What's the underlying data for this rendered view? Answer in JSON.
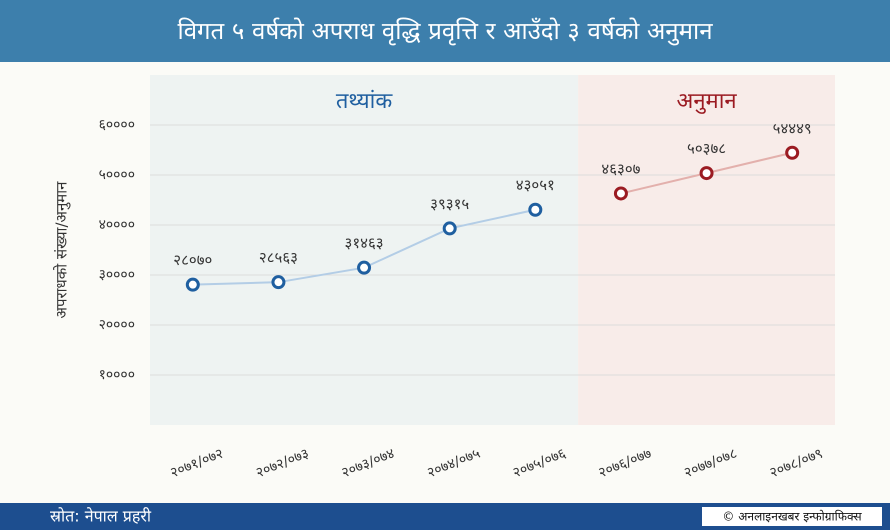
{
  "chart_data": {
    "type": "line",
    "title": "विगत ५ वर्षको अपराध वृद्धि प्रवृत्ति र आउँदो ३ वर्षको अनुमान",
    "y_label": "अपराधको संख्या/अनुमान",
    "categories": [
      "२०७१/०७२",
      "२०७२/०७३",
      "२०७३/०७४",
      "२०७४/०७५",
      "२०७५/०७६",
      "२०७६/०७७",
      "२०७७/०७८",
      "२०७८/०७९"
    ],
    "series": [
      {
        "name": "तथ्यांक",
        "color": "#1f5fa0",
        "line_color": "#b3cde6",
        "region_color": "#eef3f2",
        "values": [
          28070,
          28563,
          31463,
          39315,
          43051,
          null,
          null,
          null
        ],
        "value_labels": [
          "२८०७०",
          "२८५६३",
          "३१४६३",
          "३९३१५",
          "४३०५१",
          null,
          null,
          null
        ]
      },
      {
        "name": "अनुमान",
        "color": "#9b1b22",
        "line_color": "#e3b0ac",
        "region_color": "#f8ece9",
        "values": [
          null,
          null,
          null,
          null,
          null,
          46307,
          50378,
          54449
        ],
        "value_labels": [
          null,
          null,
          null,
          null,
          null,
          "४६३०७",
          "५०३७८",
          "५४४४९"
        ]
      }
    ],
    "ylim": [
      0,
      70000
    ],
    "yticks": [
      {
        "value": 10000,
        "label": "१००००"
      },
      {
        "value": 20000,
        "label": "२००००"
      },
      {
        "value": 30000,
        "label": "३००००"
      },
      {
        "value": 40000,
        "label": "४००००"
      },
      {
        "value": 50000,
        "label": "५००००"
      },
      {
        "value": 60000,
        "label": "६००००"
      }
    ],
    "grid": true,
    "source": "स्रोत: नेपाल प्रहरी",
    "credit": "© अनलाइनखबर इन्फोग्राफिक्स"
  }
}
